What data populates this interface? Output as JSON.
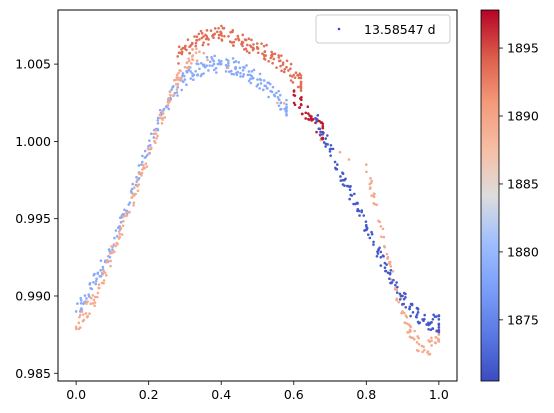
{
  "chart_data": {
    "type": "scatter",
    "title": "",
    "xlabel": "",
    "ylabel": "",
    "xlim": [
      -0.05,
      1.05
    ],
    "ylim": [
      0.9845,
      1.0085
    ],
    "xticks": [
      0.0,
      0.2,
      0.4,
      0.6,
      0.8,
      1.0
    ],
    "xtick_labels": [
      "0.0",
      "0.2",
      "0.4",
      "0.6",
      "0.8",
      "1.0"
    ],
    "yticks": [
      0.985,
      0.99,
      0.995,
      1.0,
      1.005
    ],
    "ytick_labels": [
      "0.985",
      "0.990",
      "0.995",
      "1.000",
      "1.005"
    ],
    "grid": false,
    "legend": {
      "location": "top-right",
      "label": "13.58547 d"
    },
    "colorbar": {
      "colormap": "coolwarm",
      "range": [
        1870.5,
        1897.8
      ],
      "ticks": [
        1875,
        1880,
        1885,
        1890,
        1895
      ],
      "tick_labels": [
        "1875",
        "1880",
        "1885",
        "1890",
        "1895"
      ]
    },
    "marker_color_reference": "#3b4cc0",
    "series": [
      {
        "color_value": 1878.5,
        "x": [
          0.0,
          0.02,
          0.04,
          0.06,
          0.08,
          0.1,
          0.12,
          0.14,
          0.16,
          0.18,
          0.2,
          0.22,
          0.24,
          0.26,
          0.28,
          0.3,
          0.32,
          0.34,
          0.36,
          0.38,
          0.4,
          0.42,
          0.44,
          0.46,
          0.48,
          0.5,
          0.52,
          0.54,
          0.56,
          0.58
        ],
        "y": [
          0.989,
          0.9895,
          0.9905,
          0.9915,
          0.9922,
          0.993,
          0.9945,
          0.9955,
          0.997,
          0.9985,
          0.9995,
          1.0008,
          1.002,
          1.0028,
          1.0035,
          1.004,
          1.0044,
          1.0047,
          1.0049,
          1.005,
          1.005,
          1.0049,
          1.0048,
          1.0046,
          1.0043,
          1.004,
          1.0036,
          1.0032,
          1.0027,
          1.0022
        ]
      },
      {
        "color_value": 1889.5,
        "x": [
          0.0,
          0.02,
          0.04,
          0.06,
          0.08,
          0.1,
          0.12,
          0.14,
          0.16,
          0.18,
          0.2,
          0.22,
          0.24,
          0.26,
          0.28,
          0.3,
          0.32,
          0.34,
          0.8,
          0.82,
          0.84,
          0.86,
          0.88,
          0.9,
          0.92,
          0.94,
          0.96,
          0.98,
          1.0
        ],
        "y": [
          0.988,
          0.9888,
          0.9895,
          0.9902,
          0.9915,
          0.9928,
          0.994,
          0.9952,
          0.9965,
          0.9978,
          0.9992,
          1.0005,
          1.0018,
          1.003,
          1.004,
          1.0048,
          1.0055,
          1.0058,
          0.9985,
          0.9965,
          0.9945,
          0.9925,
          0.9905,
          0.989,
          0.9878,
          0.987,
          0.9865,
          0.9868,
          0.9875
        ]
      },
      {
        "color_value": 1893.5,
        "x": [
          0.28,
          0.3,
          0.32,
          0.34,
          0.36,
          0.38,
          0.4,
          0.42,
          0.44,
          0.46,
          0.48,
          0.5,
          0.52,
          0.54,
          0.56,
          0.58,
          0.6,
          0.62
        ],
        "y": [
          1.0055,
          1.006,
          1.0063,
          1.0066,
          1.0068,
          1.0069,
          1.007,
          1.0068,
          1.0066,
          1.0064,
          1.0062,
          1.006,
          1.0058,
          1.0055,
          1.0052,
          1.0048,
          1.0043,
          1.0038
        ]
      },
      {
        "color_value": 1897.0,
        "x": [
          0.6,
          0.62,
          0.64,
          0.66,
          0.68
        ],
        "y": [
          1.003,
          1.0024,
          1.0018,
          1.0012,
          1.0006
        ]
      },
      {
        "color_value": 1871.5,
        "x": [
          0.66,
          0.68,
          0.7,
          0.72,
          0.74,
          0.76,
          0.78,
          0.8,
          0.82,
          0.84,
          0.86,
          0.88,
          0.9,
          0.92,
          0.94,
          0.96,
          0.98,
          1.0
        ],
        "y": [
          1.0015,
          1.0005,
          0.9995,
          0.9985,
          0.9975,
          0.9965,
          0.9955,
          0.9945,
          0.9935,
          0.9925,
          0.9915,
          0.9907,
          0.99,
          0.9893,
          0.9888,
          0.9885,
          0.9883,
          0.9882
        ]
      }
    ]
  }
}
